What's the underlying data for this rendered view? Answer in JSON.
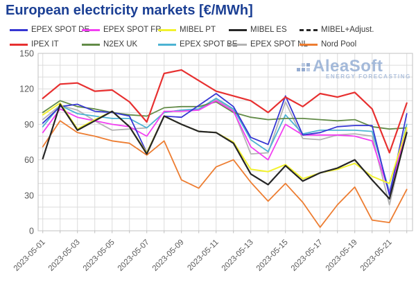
{
  "title": "European electricity markets [€/MWh]",
  "title_color": "#1b3f94",
  "watermark": {
    "name": "AleaSoft",
    "tagline": "ENERGY FORECASTING",
    "color": "#8ea9d2"
  },
  "axes": {
    "y_tick_labels": [
      "0",
      "30",
      "60",
      "90",
      "120",
      "150"
    ],
    "y_gridline_step": 10,
    "x_tick_labels": [
      "2023-05-01",
      "2023-05-03",
      "2023-05-05",
      "2023-05-07",
      "2023-05-09",
      "2023-05-11",
      "2023-05-13",
      "2023-05-15",
      "2023-05-17",
      "2023-05-19",
      "2023-05-21"
    ],
    "tick_color": "#595959",
    "gridline_color": "#dcdcdc",
    "border_color": "#c0c0c0"
  },
  "legend": {
    "rows": [
      [
        "EPEX SPOT DE",
        "EPEX SPOT FR",
        "MIBEL PT",
        "MIBEL ES",
        "MIBEL+Adjust."
      ],
      [
        "IPEX IT",
        "N2EX UK",
        "EPEX SPOT BE",
        "EPEX SPOT NL",
        "Nord Pool"
      ]
    ]
  },
  "chart_data": {
    "type": "line",
    "title": "European electricity markets [€/MWh]",
    "xlabel": "",
    "ylabel": "€/MWh",
    "ylim": [
      0,
      150
    ],
    "grid": true,
    "legend_position": "top",
    "x": [
      "2023-05-01",
      "2023-05-02",
      "2023-05-03",
      "2023-05-04",
      "2023-05-05",
      "2023-05-06",
      "2023-05-07",
      "2023-05-08",
      "2023-05-09",
      "2023-05-10",
      "2023-05-11",
      "2023-05-12",
      "2023-05-13",
      "2023-05-14",
      "2023-05-15",
      "2023-05-16",
      "2023-05-17",
      "2023-05-18",
      "2023-05-19",
      "2023-05-20",
      "2023-05-21",
      "2023-05-22"
    ],
    "series": [
      {
        "name": "EPEX SPOT DE",
        "color": "#3636d2",
        "dashed": false,
        "width": 1.8,
        "values": [
          91,
          105,
          107,
          101,
          100,
          97,
          66,
          97,
          96,
          106,
          116,
          105,
          79,
          73,
          114,
          81,
          83,
          88,
          89,
          89,
          30,
          99
        ]
      },
      {
        "name": "EPEX SPOT FR",
        "color": "#f23ff2",
        "dashed": false,
        "width": 1.8,
        "values": [
          83,
          103,
          96,
          93,
          90,
          88,
          80,
          101,
          101,
          102,
          110,
          101,
          71,
          60,
          90,
          81,
          81,
          81,
          80,
          76,
          32,
          87
        ]
      },
      {
        "name": "MIBEL PT",
        "color": "#f2f22e",
        "dashed": false,
        "width": 2,
        "values": [
          98,
          108,
          86,
          94,
          101,
          88,
          66,
          97,
          90,
          84,
          83,
          75,
          52,
          50,
          56,
          44,
          49,
          52,
          57,
          46,
          40,
          87
        ]
      },
      {
        "name": "MIBEL ES",
        "color": "#262626",
        "dashed": false,
        "width": 2.2,
        "values": [
          61,
          107,
          85,
          93,
          101,
          88,
          65,
          97,
          90,
          84,
          83,
          74,
          48,
          39,
          55,
          42,
          49,
          53,
          60,
          43,
          27,
          83
        ]
      },
      {
        "name": "MIBEL+Adjust.",
        "color": "#262626",
        "dashed": true,
        "width": 1.8,
        "values": [
          61,
          107,
          85,
          93,
          101,
          88,
          65,
          97,
          90,
          84,
          83,
          74,
          48,
          39,
          55,
          42,
          49,
          53,
          60,
          43,
          27,
          83
        ]
      },
      {
        "name": "IPEX IT",
        "color": "#e73030",
        "dashed": false,
        "width": 2.2,
        "values": [
          112,
          124,
          125,
          118,
          119,
          109,
          92,
          133,
          136,
          127,
          118,
          114,
          110,
          100,
          113,
          105,
          116,
          113,
          117,
          103,
          66,
          108
        ]
      },
      {
        "name": "N2EX UK",
        "color": "#628b47",
        "dashed": false,
        "width": 1.8,
        "values": [
          100,
          110,
          105,
          103,
          100,
          98,
          97,
          104,
          105,
          105,
          109,
          100,
          96,
          94,
          95,
          95,
          94,
          93,
          94,
          88,
          86,
          87
        ]
      },
      {
        "name": "EPEX SPOT BE",
        "color": "#4db3d3",
        "dashed": false,
        "width": 1.8,
        "values": [
          88,
          106,
          99,
          97,
          95,
          95,
          87,
          100,
          102,
          103,
          112,
          103,
          77,
          67,
          98,
          82,
          85,
          85,
          85,
          84,
          33,
          90
        ]
      },
      {
        "name": "EPEX SPOT NL",
        "color": "#b3b3b3",
        "dashed": false,
        "width": 1.8,
        "values": [
          94,
          106,
          102,
          93,
          85,
          86,
          87,
          100,
          102,
          102,
          111,
          102,
          65,
          66,
          109,
          78,
          77,
          81,
          82,
          80,
          22,
          85
        ]
      },
      {
        "name": "Nord Pool",
        "color": "#ed7d31",
        "dashed": false,
        "width": 1.8,
        "values": [
          71,
          93,
          83,
          80,
          76,
          74,
          64,
          76,
          43,
          36,
          54,
          60,
          41,
          25,
          40,
          24,
          3,
          22,
          37,
          9,
          7,
          35
        ]
      }
    ],
    "draw_order": [
      "EPEX SPOT NL",
      "EPEX SPOT BE",
      "N2EX UK",
      "Nord Pool",
      "EPEX SPOT FR",
      "EPEX SPOT DE",
      "MIBEL PT",
      "MIBEL+Adjust.",
      "MIBEL ES",
      "IPEX IT"
    ]
  }
}
